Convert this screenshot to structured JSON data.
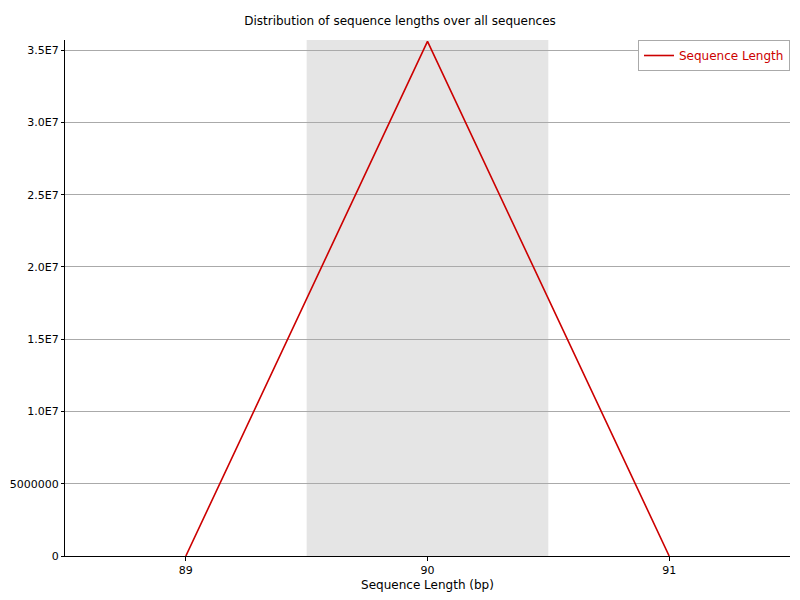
{
  "chart_data": {
    "type": "line",
    "title": "Distribution of sequence lengths over all sequences",
    "xlabel": "Sequence Length (bp)",
    "x": [
      89,
      90,
      91
    ],
    "series": [
      {
        "name": "Sequence Length",
        "color": "#cc0000",
        "values": [
          0,
          35600000,
          0
        ]
      }
    ],
    "xlim": [
      88.5,
      91.5
    ],
    "xticks": [
      89,
      90,
      91
    ],
    "ylim": [
      0,
      35700000
    ],
    "yticks": [
      0,
      5000000,
      {
        "value": 10000000,
        "label": "1.0E7"
      },
      {
        "value": 15000000,
        "label": "1.5E7"
      },
      {
        "value": 20000000,
        "label": "2.0E7"
      },
      {
        "value": 25000000,
        "label": "2.5E7"
      },
      {
        "value": 30000000,
        "label": "3.0E7"
      },
      {
        "value": 35000000,
        "label": "3.5E7"
      }
    ],
    "grid": true,
    "legend": "top right"
  }
}
